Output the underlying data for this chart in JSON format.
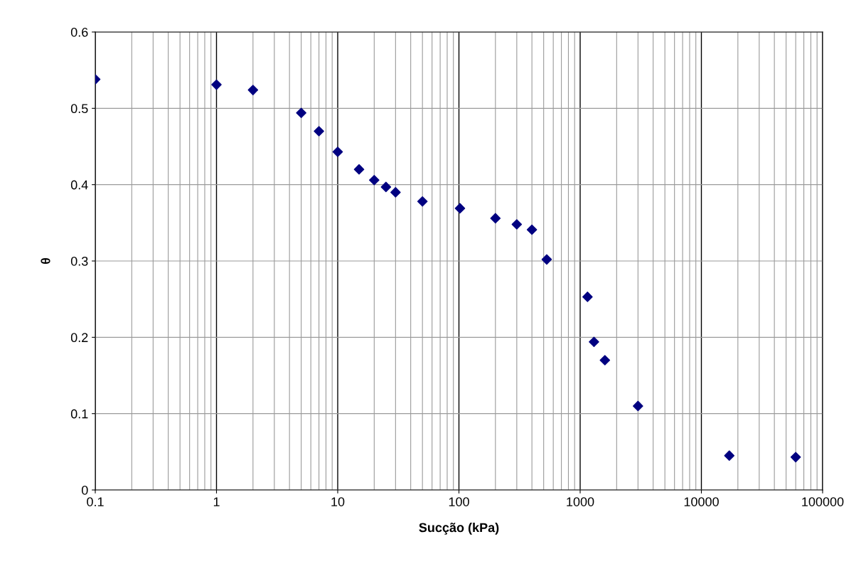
{
  "chart_data": {
    "type": "scatter",
    "xlabel": "Sucção (kPa)",
    "ylabel": "θ",
    "log": "x",
    "grid": true,
    "marker": "diamond",
    "legend": false,
    "x": [
      0.1,
      1,
      2,
      5,
      7,
      10,
      15,
      20,
      25,
      30,
      50,
      102,
      200,
      300,
      400,
      530,
      1150,
      1300,
      1600,
      3000,
      17000,
      60000
    ],
    "series": [
      {
        "color": "#000080",
        "values": [
          0.538,
          0.531,
          0.524,
          0.494,
          0.47,
          0.443,
          0.42,
          0.406,
          0.397,
          0.39,
          0.378,
          0.369,
          0.356,
          0.348,
          0.341,
          0.302,
          0.253,
          0.194,
          0.17,
          0.11,
          0.045,
          0.043
        ]
      }
    ],
    "xlim": [
      0.1,
      100000
    ],
    "xticks": [
      0.1,
      1,
      10,
      100,
      1000,
      10000,
      100000
    ],
    "ylim": [
      0,
      0.6
    ],
    "yticks": [
      0,
      0.1,
      0.2,
      0.3,
      0.4,
      0.5,
      0.6
    ]
  }
}
